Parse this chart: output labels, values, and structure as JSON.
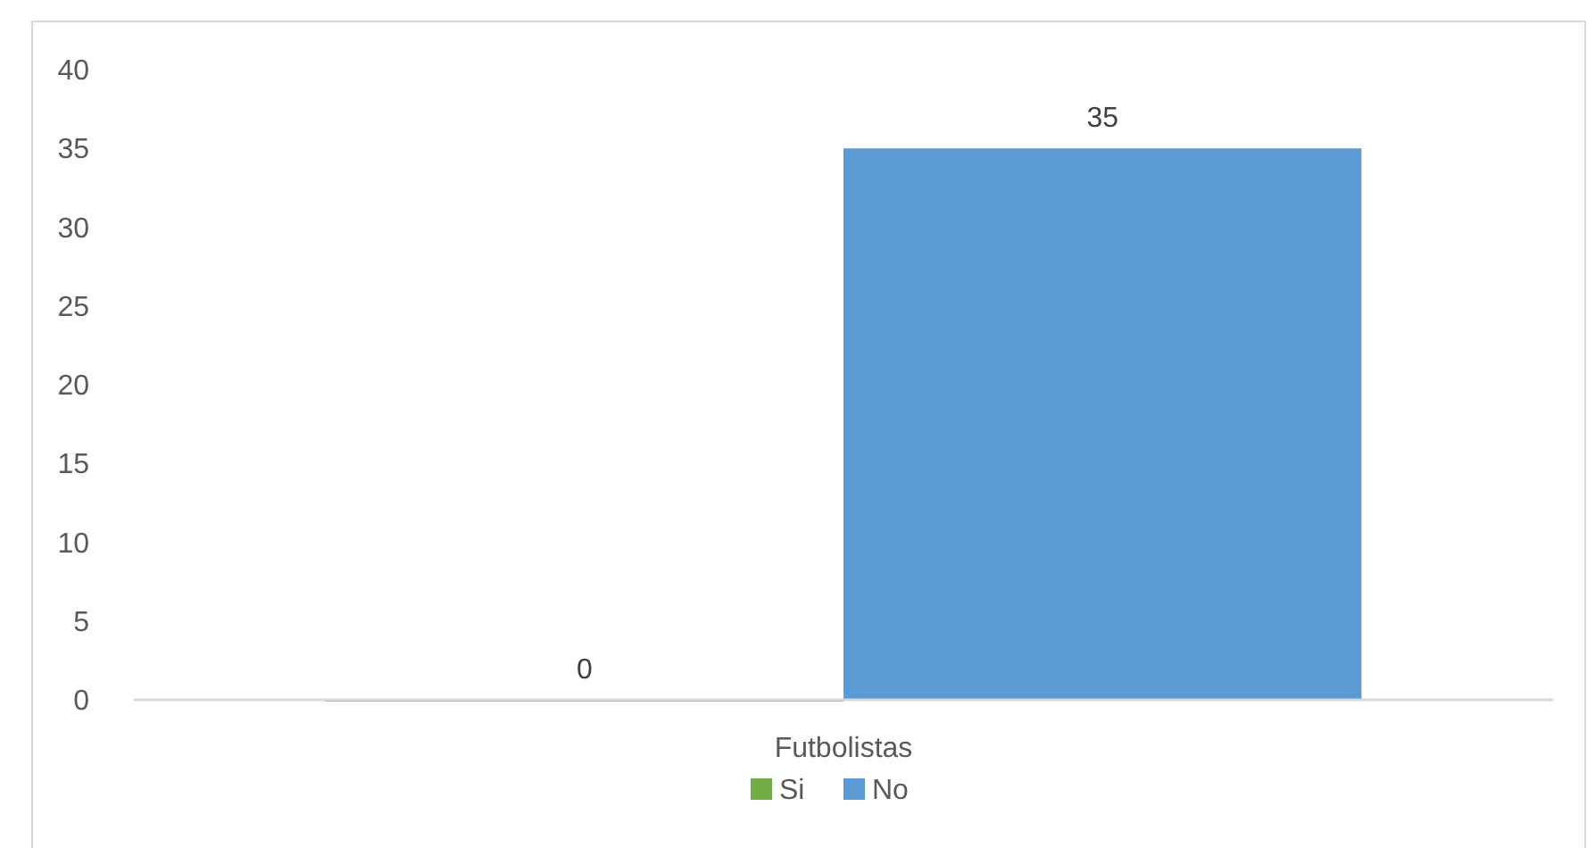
{
  "chart_data": {
    "type": "bar",
    "categories": [
      "Futbolistas"
    ],
    "series": [
      {
        "name": "Si",
        "color": "#70ad47",
        "values": [
          0
        ]
      },
      {
        "name": "No",
        "color": "#5b9bd5",
        "values": [
          35
        ]
      }
    ],
    "ylim": [
      0,
      40
    ],
    "yticks": [
      0,
      5,
      10,
      15,
      20,
      25,
      30,
      35,
      40
    ],
    "grid": false,
    "legend": "bottom",
    "data_labels": true
  }
}
